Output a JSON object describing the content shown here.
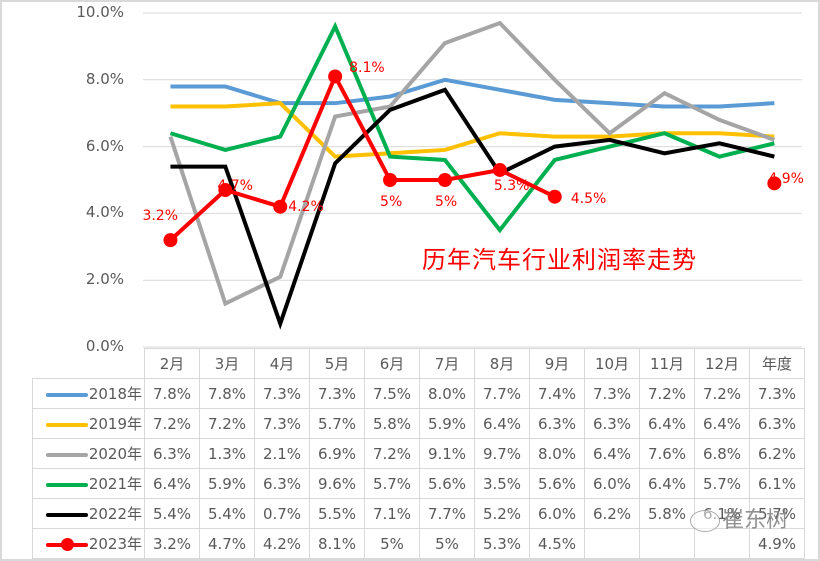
{
  "chart_data": {
    "type": "line",
    "title": "历年汽车行业利润率走势",
    "xlabel": "",
    "ylabel": "",
    "ylim": [
      0,
      10
    ],
    "yticks": [
      "0.0%",
      "2.0%",
      "4.0%",
      "6.0%",
      "8.0%",
      "10.0%"
    ],
    "grid": true,
    "legend_position": "data-table-left",
    "categories": [
      "2月",
      "3月",
      "4月",
      "5月",
      "6月",
      "7月",
      "8月",
      "9月",
      "10月",
      "11月",
      "12月",
      "年度"
    ],
    "series": [
      {
        "name": "2018年",
        "color": "#5b9bd5",
        "values": [
          7.8,
          7.8,
          7.3,
          7.3,
          7.5,
          8.0,
          7.7,
          7.4,
          7.3,
          7.2,
          7.2,
          7.3
        ],
        "labels": [
          "7.8%",
          "7.8%",
          "7.3%",
          "7.3%",
          "7.5%",
          "8.0%",
          "7.7%",
          "7.4%",
          "7.3%",
          "7.2%",
          "7.2%",
          "7.3%"
        ]
      },
      {
        "name": "2019年",
        "color": "#ffc000",
        "values": [
          7.2,
          7.2,
          7.3,
          5.7,
          5.8,
          5.9,
          6.4,
          6.3,
          6.3,
          6.4,
          6.4,
          6.3
        ],
        "labels": [
          "7.2%",
          "7.2%",
          "7.3%",
          "5.7%",
          "5.8%",
          "5.9%",
          "6.4%",
          "6.3%",
          "6.3%",
          "6.4%",
          "6.4%",
          "6.3%"
        ]
      },
      {
        "name": "2020年",
        "color": "#a5a5a5",
        "values": [
          6.3,
          1.3,
          2.1,
          6.9,
          7.2,
          9.1,
          9.7,
          8.0,
          6.4,
          7.6,
          6.8,
          6.2
        ],
        "labels": [
          "6.3%",
          "1.3%",
          "2.1%",
          "6.9%",
          "7.2%",
          "9.1%",
          "9.7%",
          "8.0%",
          "6.4%",
          "7.6%",
          "6.8%",
          "6.2%"
        ]
      },
      {
        "name": "2021年",
        "color": "#00b050",
        "values": [
          6.4,
          5.9,
          6.3,
          9.6,
          5.7,
          5.6,
          3.5,
          5.6,
          6.0,
          6.4,
          5.7,
          6.1
        ],
        "labels": [
          "6.4%",
          "5.9%",
          "6.3%",
          "9.6%",
          "5.7%",
          "5.6%",
          "3.5%",
          "5.6%",
          "6.0%",
          "6.4%",
          "5.7%",
          "6.1%"
        ]
      },
      {
        "name": "2022年",
        "color": "#000000",
        "values": [
          5.4,
          5.4,
          0.7,
          5.5,
          7.1,
          7.7,
          5.2,
          6.0,
          6.2,
          5.8,
          6.1,
          5.7
        ],
        "labels": [
          "5.4%",
          "5.4%",
          "0.7%",
          "5.5%",
          "7.1%",
          "7.7%",
          "5.2%",
          "6.0%",
          "6.2%",
          "5.8%",
          "6.1%",
          "5.7%"
        ]
      },
      {
        "name": "2023年",
        "color": "#ff0000",
        "marker": "circle",
        "values": [
          3.2,
          4.7,
          4.2,
          8.1,
          5.0,
          5.0,
          5.3,
          4.5,
          null,
          null,
          null,
          4.9
        ],
        "labels": [
          "3.2%",
          "4.7%",
          "4.2%",
          "8.1%",
          "5%",
          "5%",
          "5.3%",
          "4.5%",
          "",
          "",
          "",
          "4.9%"
        ]
      }
    ],
    "annotations": [
      "3.2%",
      "4.7%",
      "4.2%",
      "8.1%",
      "5%",
      "5%",
      "5.3%",
      "4.5%",
      "4.9%"
    ]
  },
  "watermark": {
    "text": "崔东树",
    "icon": "wechat-icon"
  }
}
